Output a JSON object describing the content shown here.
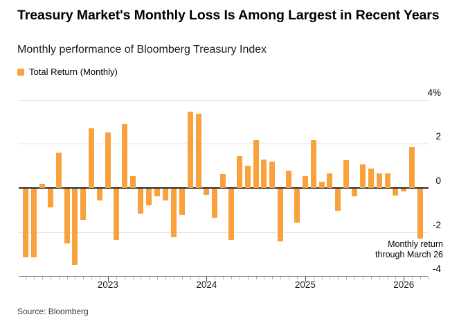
{
  "header": {
    "title": "Treasury Market's Monthly Loss Is Among Largest in Recent Years",
    "subtitle": "Monthly performance of Bloomberg Treasury Index"
  },
  "legend": {
    "label": "Total Return (Monthly)"
  },
  "annotation": {
    "line1": "Monthly return",
    "line2": "through March 26"
  },
  "source": "Source: Bloomberg",
  "colors": {
    "bar": "#F9A13C",
    "grid": "#DCDCDC",
    "zero_line": "#2A2A2A",
    "axis_line": "#8C8C8C",
    "text": "#000000"
  },
  "chart_data": {
    "type": "bar",
    "title": "Treasury Market's Monthly Loss Is Among Largest in Recent Years",
    "subtitle": "Monthly performance of Bloomberg Treasury Index",
    "series_name": "Total Return (Monthly)",
    "unit": "%",
    "xlabel": "",
    "ylabel": "",
    "ylim": [
      -4,
      4
    ],
    "grid": true,
    "legend_position": "top-left",
    "categories": [
      "Mar 2022",
      "Apr 2022",
      "May 2022",
      "Jun 2022",
      "Jul 2022",
      "Aug 2022",
      "Sep 2022",
      "Oct 2022",
      "Nov 2022",
      "Dec 2022",
      "Jan 2023",
      "Feb 2023",
      "Mar 2023",
      "Apr 2023",
      "May 2023",
      "Jun 2023",
      "Jul 2023",
      "Aug 2023",
      "Sep 2023",
      "Oct 2023",
      "Nov 2023",
      "Dec 2023",
      "Jan 2024",
      "Feb 2024",
      "Mar 2024",
      "Apr 2024",
      "May 2024",
      "Jun 2024",
      "Jul 2024",
      "Aug 2024",
      "Sep 2024",
      "Oct 2024",
      "Nov 2024",
      "Dec 2024",
      "Jan 2025",
      "Feb 2025",
      "Mar 2025",
      "Apr 2025",
      "May 2025",
      "Jun 2025",
      "Jul 2025",
      "Aug 2025",
      "Sep 2025",
      "Oct 2025",
      "Nov 2025",
      "Dec 2025",
      "Jan 2026",
      "Feb 2026",
      "Mar 2026"
    ],
    "values": [
      -3.11,
      -3.1,
      0.18,
      -0.84,
      1.59,
      -2.48,
      -3.45,
      -1.41,
      2.7,
      -0.54,
      2.51,
      -2.34,
      2.89,
      0.54,
      -1.14,
      -0.75,
      -0.36,
      -0.52,
      -2.21,
      -1.18,
      3.47,
      3.37,
      -0.28,
      -1.33,
      0.64,
      -2.33,
      1.46,
      1.0,
      2.18,
      1.28,
      1.2,
      -2.38,
      0.78,
      -1.54,
      0.52,
      2.17,
      0.28,
      0.67,
      -1.0,
      1.26,
      -0.36,
      1.07,
      0.87,
      0.66,
      0.66,
      -0.3,
      -0.13,
      1.84,
      -2.25
    ],
    "yticks": [
      {
        "value": 4,
        "label": "4%"
      },
      {
        "value": 2,
        "label": "2"
      },
      {
        "value": 0,
        "label": "0"
      },
      {
        "value": -2,
        "label": "-2"
      },
      {
        "value": -4,
        "label": "-4"
      }
    ],
    "xticks": [
      {
        "index": 10,
        "label": "2023"
      },
      {
        "index": 22,
        "label": "2024"
      },
      {
        "index": 34,
        "label": "2025"
      },
      {
        "index": 46,
        "label": "2026"
      }
    ]
  }
}
